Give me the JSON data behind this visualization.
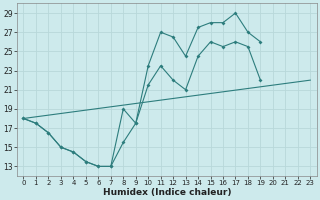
{
  "xlabel": "Humidex (Indice chaleur)",
  "bg_color": "#cdeaec",
  "grid_color": "#b8d8da",
  "line_color": "#2d7d7d",
  "xlim": [
    -0.5,
    23.5
  ],
  "ylim": [
    12,
    30
  ],
  "xticks": [
    0,
    1,
    2,
    3,
    4,
    5,
    6,
    7,
    8,
    9,
    10,
    11,
    12,
    13,
    14,
    15,
    16,
    17,
    18,
    19,
    20,
    21,
    22,
    23
  ],
  "yticks": [
    13,
    15,
    17,
    19,
    21,
    23,
    25,
    27,
    29
  ],
  "line1_x": [
    0,
    1,
    2,
    3,
    4,
    5,
    6,
    7,
    8,
    9,
    10,
    11,
    12,
    13,
    14,
    15,
    16,
    17,
    18,
    19,
    20,
    21,
    22,
    23
  ],
  "line1_y": [
    18,
    17.5,
    16.5,
    15,
    14.5,
    13.5,
    13,
    13,
    19,
    17.5,
    23.5,
    27,
    26.5,
    24.5,
    27.5,
    28,
    28,
    29,
    27,
    26,
    null,
    null,
    null,
    null
  ],
  "line2_x": [
    0,
    1,
    2,
    3,
    4,
    5,
    6,
    7,
    8,
    9,
    10,
    11,
    12,
    13,
    14,
    15,
    16,
    17,
    18,
    19,
    20,
    21,
    22,
    23
  ],
  "line2_y": [
    18,
    17.5,
    16.5,
    15,
    14.5,
    13.5,
    13,
    13,
    15.5,
    17.5,
    21.5,
    23.5,
    22,
    21,
    24.5,
    26,
    25.5,
    26,
    25.5,
    22,
    null,
    null,
    null,
    null
  ],
  "line3_x": [
    0,
    23
  ],
  "line3_y": [
    18,
    22
  ]
}
